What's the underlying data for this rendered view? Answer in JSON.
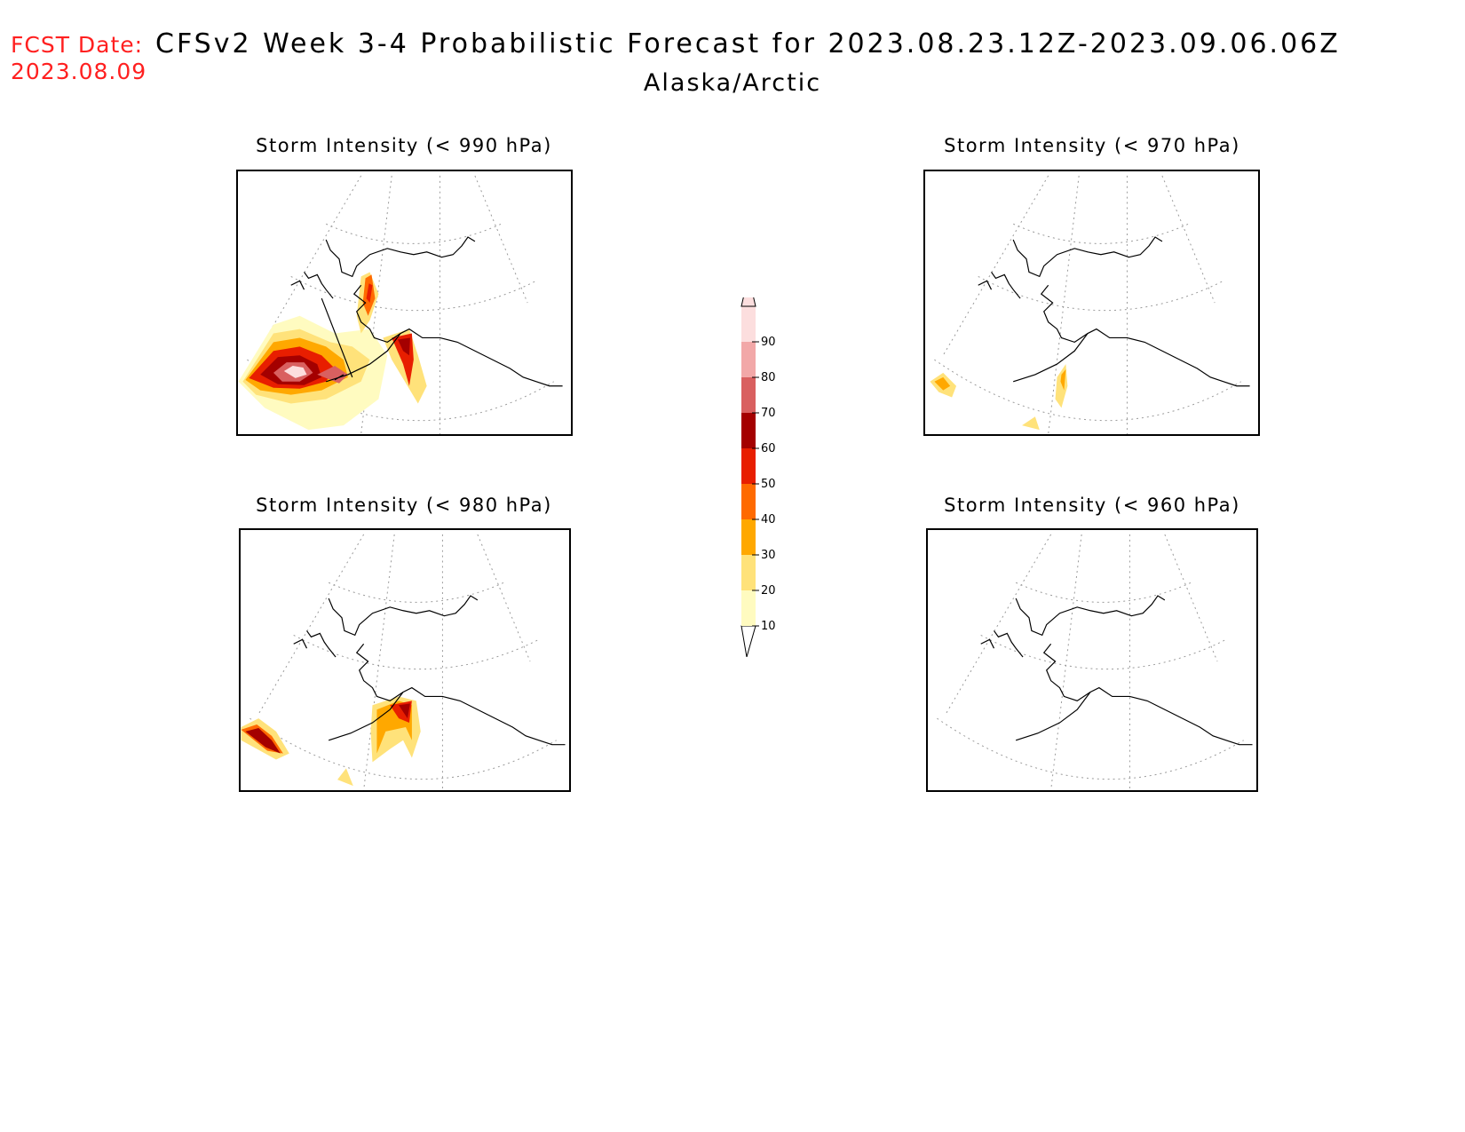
{
  "header": {
    "fcst_label": "FCST Date:",
    "fcst_date": "2023.08.09",
    "title": "CFSv2 Week 3-4 Probabilistic Forecast for 2023.08.23.12Z-2023.09.06.06Z",
    "subtitle": "Alaska/Arctic"
  },
  "panels": [
    {
      "title": "Storm Intensity (< 990 hPa)"
    },
    {
      "title": "Storm Intensity (< 970 hPa)"
    },
    {
      "title": "Storm Intensity (< 980 hPa)"
    },
    {
      "title": "Storm Intensity (< 960 hPa)"
    }
  ],
  "legend": {
    "levels": [
      "10",
      "20",
      "30",
      "40",
      "50",
      "60",
      "70",
      "80",
      "90"
    ],
    "colors": [
      "#fffbc0",
      "#ffe27a",
      "#ffa800",
      "#ff6a00",
      "#e81e00",
      "#a40000",
      "#d96060",
      "#f2a8a8",
      "#fcdede"
    ]
  }
}
